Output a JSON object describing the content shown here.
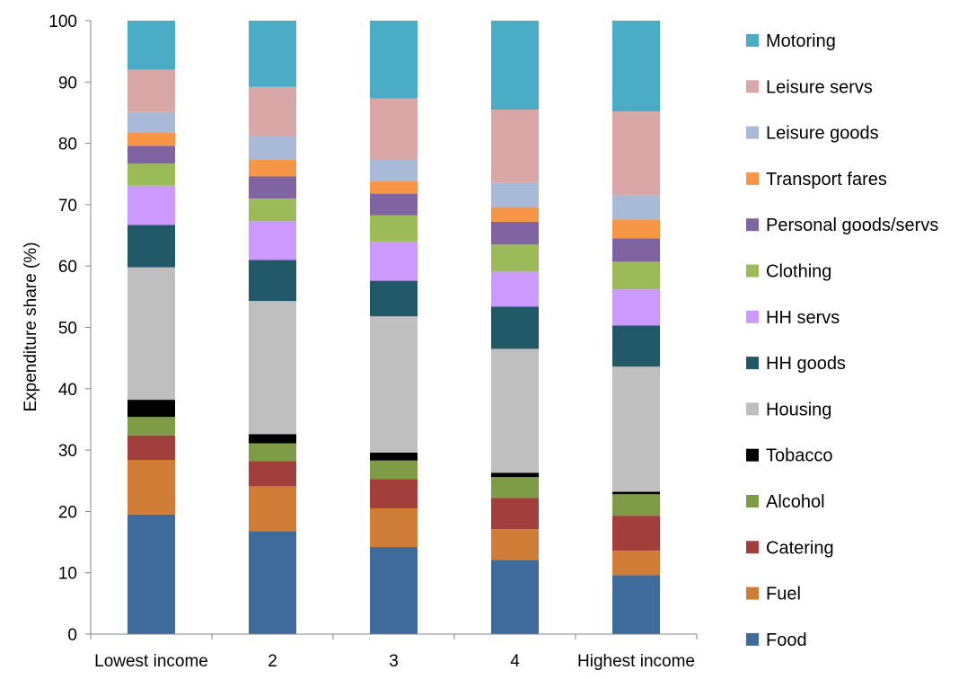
{
  "chart_data": {
    "type": "bar",
    "stacked": true,
    "title": "",
    "xlabel": "",
    "ylabel": "Expenditure share (%)",
    "ylim": [
      0,
      100
    ],
    "yticks": [
      0,
      10,
      20,
      30,
      40,
      50,
      60,
      70,
      80,
      90,
      100
    ],
    "grid": false,
    "legend_position": "right",
    "categories": [
      "Lowest income",
      "2",
      "3",
      "4",
      "Highest income"
    ],
    "series": [
      {
        "name": "Food",
        "color": "#3f6a9c",
        "values": [
          19.5,
          16.8,
          14.2,
          12.1,
          9.6
        ]
      },
      {
        "name": "Fuel",
        "color": "#d07d38",
        "values": [
          8.9,
          7.3,
          6.3,
          5.0,
          4.0
        ]
      },
      {
        "name": "Catering",
        "color": "#a23f3c",
        "values": [
          4.0,
          4.1,
          4.8,
          5.1,
          5.7
        ]
      },
      {
        "name": "Alcohol",
        "color": "#7e9c45",
        "values": [
          3.0,
          2.9,
          3.0,
          3.4,
          3.5
        ]
      },
      {
        "name": "Tobacco",
        "color": "#000000",
        "values": [
          2.8,
          1.5,
          1.3,
          0.7,
          0.4
        ]
      },
      {
        "name": "Housing",
        "color": "#bfbfbf",
        "values": [
          21.6,
          21.7,
          22.2,
          20.2,
          20.4
        ]
      },
      {
        "name": "HH goods",
        "color": "#215968",
        "values": [
          6.9,
          6.7,
          5.8,
          6.9,
          6.7
        ]
      },
      {
        "name": "HH servs",
        "color": "#cc99ff",
        "values": [
          6.4,
          6.3,
          6.4,
          5.7,
          5.9
        ]
      },
      {
        "name": "Clothing",
        "color": "#9bbb59",
        "values": [
          3.6,
          3.7,
          4.3,
          4.4,
          4.5
        ]
      },
      {
        "name": "Personal goods/servs",
        "color": "#8064a2",
        "values": [
          2.9,
          3.6,
          3.5,
          3.7,
          3.8
        ]
      },
      {
        "name": "Transport fares",
        "color": "#f79646",
        "values": [
          2.2,
          2.7,
          2.0,
          2.4,
          3.1
        ]
      },
      {
        "name": "Leisure goods",
        "color": "#a9b9d8",
        "values": [
          3.3,
          3.9,
          3.5,
          4.0,
          3.9
        ]
      },
      {
        "name": "Leisure servs",
        "color": "#d9a7a6",
        "values": [
          6.9,
          8.0,
          10.0,
          11.9,
          13.7
        ]
      },
      {
        "name": "Motoring",
        "color": "#4bacc6",
        "values": [
          8.0,
          10.8,
          12.7,
          14.5,
          14.8
        ]
      }
    ]
  }
}
